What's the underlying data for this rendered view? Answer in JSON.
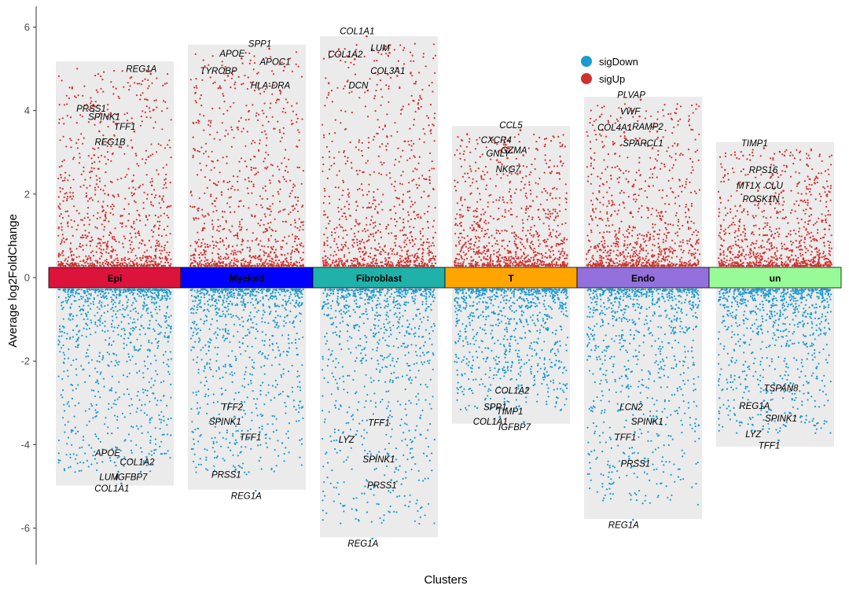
{
  "chart_data": {
    "type": "scatter",
    "xlabel": "Clusters",
    "ylabel": "Average log2FoldChange",
    "ylim": [
      -6.5,
      6.3
    ],
    "yticks": [
      -6,
      -4,
      -2,
      0,
      2,
      4,
      6
    ],
    "grid": false,
    "legend": {
      "position": "top-right",
      "entries": [
        {
          "name": "sigDown",
          "color": "#1A9AD0"
        },
        {
          "name": "sigUp",
          "color": "#D1312F"
        }
      ]
    },
    "clusters": [
      {
        "name": "Epi",
        "color": "#DC143C",
        "max": 5.18,
        "min": -4.98,
        "up_labels": [
          {
            "gene": "REG1A",
            "x": 0.45,
            "y": 5.0
          },
          {
            "gene": "PRSS1",
            "x": -0.4,
            "y": 4.05
          },
          {
            "gene": "SPINK1",
            "x": -0.18,
            "y": 3.85
          },
          {
            "gene": "TFF1",
            "x": 0.17,
            "y": 3.62
          },
          {
            "gene": "REG1B",
            "x": -0.08,
            "y": 3.25
          }
        ],
        "down_labels": [
          {
            "gene": "APOE",
            "x": -0.12,
            "y": -4.2
          },
          {
            "gene": "COL1A2",
            "x": 0.38,
            "y": -4.42
          },
          {
            "gene": "LUM",
            "x": -0.1,
            "y": -4.77
          },
          {
            "gene": "IGFBP7",
            "x": 0.28,
            "y": -4.77
          },
          {
            "gene": "COL1A1",
            "x": -0.05,
            "y": -5.05
          }
        ]
      },
      {
        "name": "Myeloid",
        "color": "#0000FF",
        "max": 5.58,
        "min": -5.08,
        "up_labels": [
          {
            "gene": "SPP1",
            "x": 0.22,
            "y": 5.6
          },
          {
            "gene": "APOE",
            "x": -0.25,
            "y": 5.37
          },
          {
            "gene": "APOC1",
            "x": 0.48,
            "y": 5.17
          },
          {
            "gene": "TYROBP",
            "x": -0.48,
            "y": 4.95
          },
          {
            "gene": "HLA-DRA",
            "x": 0.4,
            "y": 4.6
          }
        ],
        "down_labels": [
          {
            "gene": "TFF2",
            "x": -0.25,
            "y": -3.1
          },
          {
            "gene": "SPINK1",
            "x": -0.37,
            "y": -3.45
          },
          {
            "gene": "TFF1",
            "x": 0.06,
            "y": -3.82
          },
          {
            "gene": "PRSS1",
            "x": -0.35,
            "y": -4.72
          },
          {
            "gene": "REG1A",
            "x": -0.01,
            "y": -5.23
          }
        ]
      },
      {
        "name": "Fibroblast",
        "color": "#20B2AA",
        "max": 5.78,
        "min": -6.22,
        "up_labels": [
          {
            "gene": "COL1A1",
            "x": -0.37,
            "y": 5.9
          },
          {
            "gene": "LUM",
            "x": 0.02,
            "y": 5.5
          },
          {
            "gene": "COL1A2",
            "x": -0.57,
            "y": 5.35
          },
          {
            "gene": "COL3A1",
            "x": 0.15,
            "y": 4.95
          },
          {
            "gene": "DCN",
            "x": -0.35,
            "y": 4.6
          }
        ],
        "down_labels": [
          {
            "gene": "TFF1",
            "x": 0.0,
            "y": -3.47
          },
          {
            "gene": "LYZ",
            "x": -0.55,
            "y": -3.88
          },
          {
            "gene": "SPINK1",
            "x": 0.0,
            "y": -4.35
          },
          {
            "gene": "PRSS1",
            "x": 0.05,
            "y": -4.97
          },
          {
            "gene": "REG1A",
            "x": -0.27,
            "y": -6.37
          }
        ]
      },
      {
        "name": "T",
        "color": "#FFA500",
        "max": 3.63,
        "min": -3.5,
        "up_labels": [
          {
            "gene": "CCL5",
            "x": 0.0,
            "y": 3.65
          },
          {
            "gene": "CXCR4",
            "x": -0.25,
            "y": 3.3
          },
          {
            "gene": "GZMA",
            "x": 0.05,
            "y": 3.05
          },
          {
            "gene": "GNLY",
            "x": -0.22,
            "y": 2.98
          },
          {
            "gene": "NKG7",
            "x": -0.05,
            "y": 2.6
          }
        ],
        "down_labels": [
          {
            "gene": "COL1A2",
            "x": 0.02,
            "y": -2.7
          },
          {
            "gene": "SPP1",
            "x": -0.27,
            "y": -3.1
          },
          {
            "gene": "TIMP1",
            "x": -0.02,
            "y": -3.2
          },
          {
            "gene": "COL1A1",
            "x": -0.35,
            "y": -3.45
          },
          {
            "gene": "IGFBP7",
            "x": 0.06,
            "y": -3.58
          }
        ]
      },
      {
        "name": "Endo",
        "color": "#9370DB",
        "max": 4.33,
        "min": -5.78,
        "up_labels": [
          {
            "gene": "PLVAP",
            "x": -0.2,
            "y": 4.38
          },
          {
            "gene": "VWF",
            "x": -0.22,
            "y": 3.98
          },
          {
            "gene": "COL4A1",
            "x": -0.48,
            "y": 3.6
          },
          {
            "gene": "RAMP2",
            "x": 0.08,
            "y": 3.62
          },
          {
            "gene": "SPARCL1",
            "x": 0.0,
            "y": 3.22
          }
        ],
        "down_labels": [
          {
            "gene": "LCN2",
            "x": -0.2,
            "y": -3.1
          },
          {
            "gene": "SPINK1",
            "x": 0.07,
            "y": -3.45
          },
          {
            "gene": "TFF1",
            "x": -0.3,
            "y": -3.82
          },
          {
            "gene": "PRSS1",
            "x": -0.13,
            "y": -4.45
          },
          {
            "gene": "REG1A",
            "x": -0.33,
            "y": -5.92
          }
        ]
      },
      {
        "name": "un",
        "color": "#98FB98",
        "max": 3.25,
        "min": -4.05,
        "up_labels": [
          {
            "gene": "TIMP1",
            "x": -0.35,
            "y": 3.22
          },
          {
            "gene": "RPS16",
            "x": -0.2,
            "y": 2.58
          },
          {
            "gene": "MT1X",
            "x": -0.45,
            "y": 2.2
          },
          {
            "gene": "CLU",
            "x": -0.02,
            "y": 2.2
          },
          {
            "gene": "POSK1N",
            "x": -0.24,
            "y": 1.88
          }
        ],
        "down_labels": [
          {
            "gene": "TSPAN8",
            "x": 0.1,
            "y": -2.65
          },
          {
            "gene": "REG1A",
            "x": -0.35,
            "y": -3.07
          },
          {
            "gene": "SPINK1",
            "x": 0.1,
            "y": -3.37
          },
          {
            "gene": "LYZ",
            "x": -0.37,
            "y": -3.75
          },
          {
            "gene": "TFF1",
            "x": -0.1,
            "y": -4.02
          }
        ]
      }
    ]
  }
}
